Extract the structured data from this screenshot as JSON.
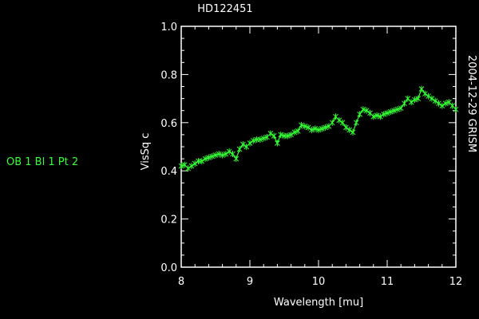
{
  "left_label": "OB 1 Bl 1 Pt 2",
  "chart_data": {
    "type": "line",
    "title": "HD122451",
    "xlabel": "Wavelength [mu]",
    "ylabel": "VisSq c",
    "right_label": "2004-12-29 GRISM",
    "xlim": [
      8,
      12
    ],
    "ylim": [
      0,
      1.0
    ],
    "xticks": [
      "8",
      "9",
      "10",
      "11",
      "12"
    ],
    "yticks": [
      "0.0",
      "0.2",
      "0.4",
      "0.6",
      "0.8",
      "1.0"
    ],
    "grid": false,
    "color": "#33ff33",
    "series": [
      {
        "x": [
          8.0,
          8.05,
          8.1,
          8.15,
          8.2,
          8.25,
          8.3,
          8.35,
          8.4,
          8.45,
          8.5,
          8.55,
          8.6,
          8.65,
          8.7,
          8.75,
          8.8,
          8.85,
          8.9,
          8.95,
          9.0,
          9.05,
          9.1,
          9.15,
          9.2,
          9.25,
          9.3,
          9.35,
          9.4,
          9.45,
          9.5,
          9.55,
          9.6,
          9.65,
          9.7,
          9.75,
          9.8,
          9.85,
          9.9,
          9.95,
          10.0,
          10.05,
          10.1,
          10.15,
          10.2,
          10.25,
          10.3,
          10.35,
          10.4,
          10.45,
          10.5,
          10.55,
          10.6,
          10.65,
          10.7,
          10.75,
          10.8,
          10.85,
          10.9,
          10.95,
          11.0,
          11.05,
          11.1,
          11.15,
          11.2,
          11.25,
          11.3,
          11.35,
          11.4,
          11.45,
          11.5,
          11.55,
          11.6,
          11.65,
          11.7,
          11.75,
          11.8,
          11.85,
          11.9,
          11.95,
          12.0
        ],
        "y": [
          0.42,
          0.425,
          0.41,
          0.42,
          0.43,
          0.44,
          0.44,
          0.45,
          0.455,
          0.46,
          0.465,
          0.47,
          0.465,
          0.47,
          0.48,
          0.47,
          0.45,
          0.49,
          0.51,
          0.5,
          0.515,
          0.525,
          0.53,
          0.53,
          0.535,
          0.54,
          0.555,
          0.545,
          0.515,
          0.55,
          0.545,
          0.545,
          0.55,
          0.56,
          0.565,
          0.59,
          0.585,
          0.58,
          0.57,
          0.575,
          0.57,
          0.575,
          0.58,
          0.585,
          0.6,
          0.625,
          0.61,
          0.6,
          0.58,
          0.57,
          0.56,
          0.6,
          0.635,
          0.655,
          0.65,
          0.64,
          0.625,
          0.63,
          0.625,
          0.635,
          0.64,
          0.645,
          0.65,
          0.655,
          0.66,
          0.68,
          0.7,
          0.685,
          0.695,
          0.7,
          0.74,
          0.72,
          0.71,
          0.7,
          0.69,
          0.68,
          0.67,
          0.68,
          0.685,
          0.67,
          0.655
        ]
      }
    ]
  }
}
